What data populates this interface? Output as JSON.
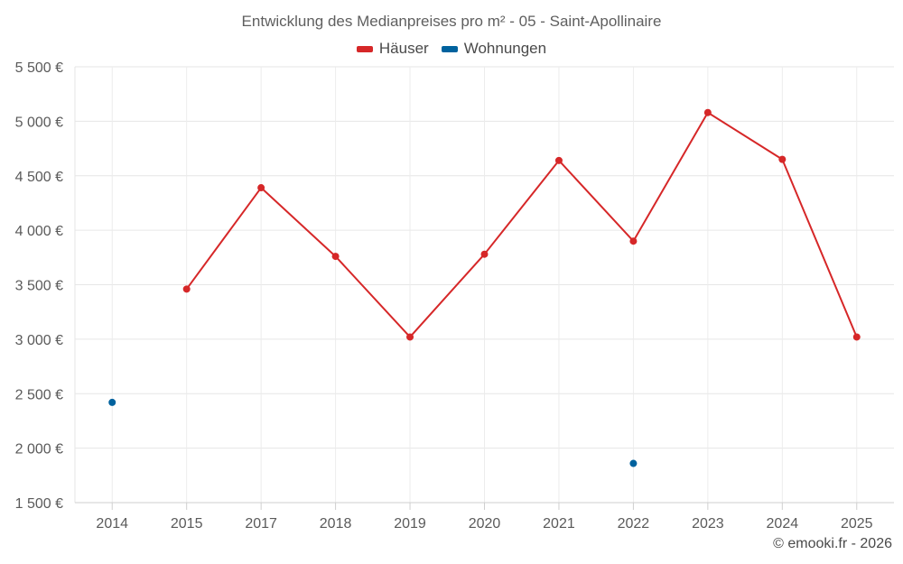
{
  "chart_data": {
    "type": "line",
    "title": "Entwicklung des Medianpreises pro m² - 05 - Saint-Apollinaire",
    "categories": [
      "2014",
      "2015",
      "2017",
      "2018",
      "2019",
      "2020",
      "2021",
      "2022",
      "2023",
      "2024",
      "2025"
    ],
    "y_tick_labels": [
      "1 500 €",
      "2 000 €",
      "2 500 €",
      "3 000 €",
      "3 500 €",
      "4 000 €",
      "4 500 €",
      "5 000 €",
      "5 500 €"
    ],
    "y_ticks": [
      1500,
      2000,
      2500,
      3000,
      3500,
      4000,
      4500,
      5000,
      5500
    ],
    "ylim": [
      1500,
      5500
    ],
    "grid": true,
    "legend_position": "top-center",
    "series": [
      {
        "name": "Häuser",
        "color": "#d62728",
        "values": [
          null,
          3460,
          4390,
          3760,
          3020,
          3780,
          4640,
          3900,
          5080,
          4650,
          3020
        ]
      },
      {
        "name": "Wohnungen",
        "color": "#00629e",
        "values": [
          2420,
          null,
          null,
          null,
          null,
          null,
          null,
          1860,
          null,
          null,
          null
        ]
      }
    ]
  },
  "credit": "© emooki.fr - 2026"
}
